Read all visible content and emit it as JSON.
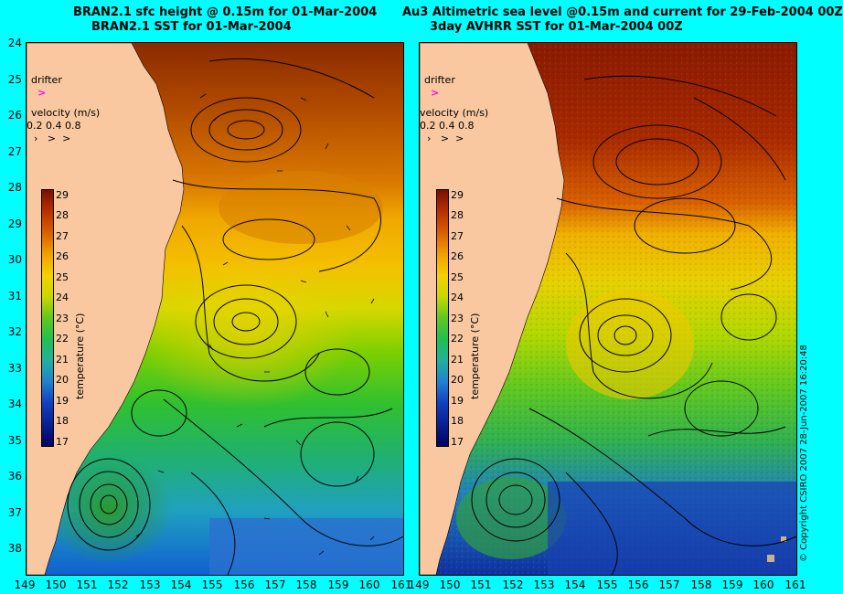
{
  "titles": {
    "left_line1": "BRAN2.1 sfc height @ 0.15m for 01-Mar-2004",
    "left_line2": "BRAN2.1 SST for 01-Mar-2004",
    "right_line1": "Au3 Altimetric sea level  @0.15m and current for 29-Feb-2004 00Z",
    "right_line2": "3day AVHRR SST for 01-Mar-2004 00Z"
  },
  "y_axis_labels": [
    "24",
    "25",
    "26",
    "27",
    "28",
    "29",
    "30",
    "31",
    "32",
    "33",
    "34",
    "35",
    "36",
    "37",
    "38"
  ],
  "x_axis_labels": [
    "149",
    "150",
    "151",
    "152",
    "153",
    "154",
    "155",
    "156",
    "157",
    "158",
    "159",
    "160",
    "161"
  ],
  "x_axis_labels_right": [
    "151",
    "152",
    "153",
    "154",
    "155",
    "156",
    "157",
    "158",
    "159",
    "160",
    "161"
  ],
  "legend": {
    "drifter_label": "drifter",
    "velocity_label": "velocity (m/s)",
    "velocity_values": "0.2 0.4 0.8",
    "colorbar_title": "temperature (°C)",
    "colorbar_ticks": [
      "29",
      "28",
      "27",
      "26",
      "25",
      "24",
      "23",
      "22",
      "21",
      "20",
      "19",
      "18",
      "17"
    ]
  },
  "copyright": "© Copyright CSIRO 2007    28-Jun-2007 16:20:48",
  "colors": {
    "background": "#00ffff",
    "land": "#f9c8a0",
    "drifter_marker": "#ff00ff"
  }
}
